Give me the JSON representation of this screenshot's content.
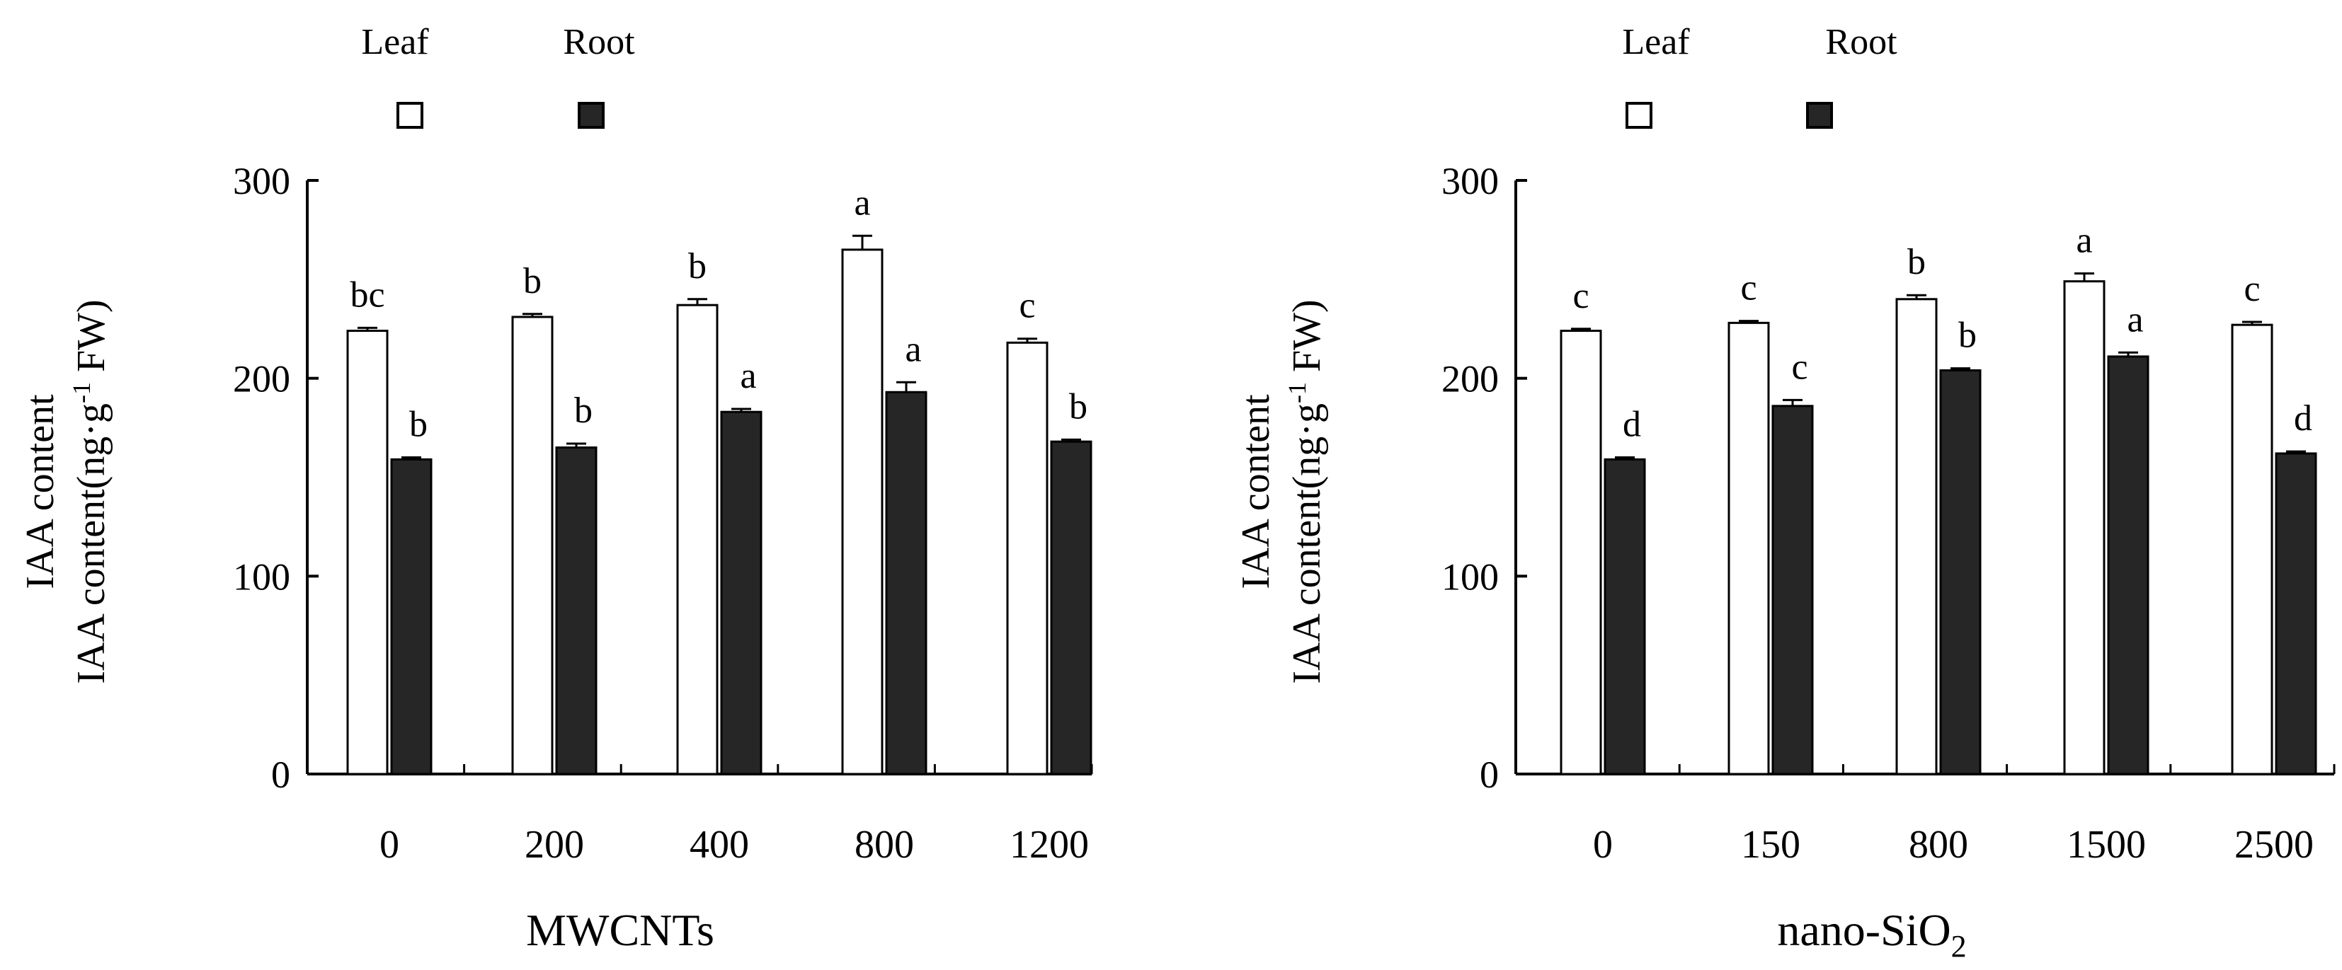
{
  "chart_data": [
    {
      "type": "bar",
      "title": "",
      "xlabel": "MWCNTs",
      "ylabel_line1": "IAA content",
      "ylabel_line2_prefix": "IAA content(ng·g",
      "ylabel_line2_sup": "-1",
      "ylabel_line2_suffix": " FW)",
      "ylim": [
        0,
        300
      ],
      "yticks": [
        0,
        100,
        200,
        300
      ],
      "categories": [
        "0",
        "200",
        "400",
        "800",
        "1200"
      ],
      "series": [
        {
          "name": "Leaf",
          "fill": "#ffffff",
          "values": [
            224,
            231,
            237,
            265,
            218
          ],
          "errors": [
            1.5,
            1.5,
            3,
            7,
            2
          ],
          "letters": [
            "bc",
            "b",
            "b",
            "a",
            "c"
          ]
        },
        {
          "name": "Root",
          "fill": "#262626",
          "values": [
            159,
            165,
            183,
            193,
            168
          ],
          "errors": [
            1,
            2,
            1.5,
            5,
            1
          ],
          "letters": [
            "b",
            "b",
            "a",
            "a",
            "b"
          ]
        }
      ],
      "legend": [
        "Leaf",
        "Root"
      ]
    },
    {
      "type": "bar",
      "title": "",
      "xlabel_main": "nano-SiO",
      "xlabel_sub": "2",
      "ylabel_line1": "IAA content",
      "ylabel_line2_prefix": "IAA content(ng·g",
      "ylabel_line2_sup": "-1",
      "ylabel_line2_suffix": " FW)",
      "ylim": [
        0,
        300
      ],
      "yticks": [
        0,
        100,
        200,
        300
      ],
      "categories": [
        "0",
        "150",
        "800",
        "1500",
        "2500"
      ],
      "series": [
        {
          "name": "Leaf",
          "fill": "#ffffff",
          "values": [
            224,
            228,
            240,
            249,
            227
          ],
          "errors": [
            1,
            1,
            2,
            4,
            1.5
          ],
          "letters": [
            "c",
            "c",
            "b",
            "a",
            "c"
          ]
        },
        {
          "name": "Root",
          "fill": "#262626",
          "values": [
            159,
            186,
            204,
            211,
            162
          ],
          "errors": [
            1,
            3,
            1,
            2,
            1
          ],
          "letters": [
            "d",
            "c",
            "b",
            "a",
            "d"
          ]
        }
      ],
      "legend": [
        "Leaf",
        "Root"
      ]
    }
  ]
}
